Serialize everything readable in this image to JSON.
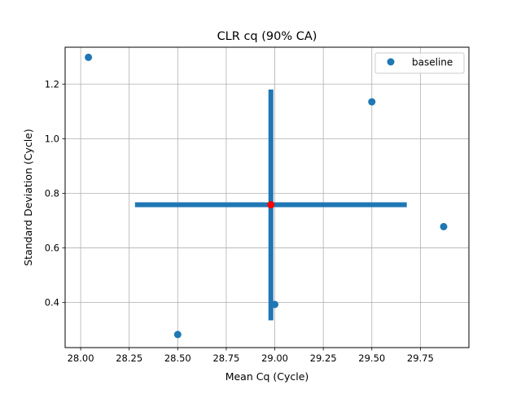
{
  "chart_data": {
    "type": "scatter",
    "title": "CLR cq (90% CA)",
    "xlabel": "Mean Cq (Cycle)",
    "ylabel": "Standard Deviation (Cycle)",
    "xlim": [
      27.92,
      30.0
    ],
    "ylim": [
      0.235,
      1.335
    ],
    "xticks": [
      28.0,
      28.25,
      28.5,
      28.75,
      29.0,
      29.25,
      29.5,
      29.75
    ],
    "xtick_labels": [
      "28.00",
      "28.25",
      "28.50",
      "28.75",
      "29.00",
      "29.25",
      "29.50",
      "29.75"
    ],
    "yticks": [
      0.4,
      0.6,
      0.8,
      1.0,
      1.2
    ],
    "ytick_labels": [
      "0.4",
      "0.6",
      "0.8",
      "1.0",
      "1.2"
    ],
    "grid": true,
    "legend": {
      "position": "top-right",
      "entries": [
        "baseline"
      ]
    },
    "series": [
      {
        "name": "baseline",
        "color": "#1f77b4",
        "points": [
          {
            "x": 28.04,
            "y": 1.298
          },
          {
            "x": 29.5,
            "y": 1.135
          },
          {
            "x": 29.87,
            "y": 0.678
          },
          {
            "x": 29.0,
            "y": 0.393
          },
          {
            "x": 28.5,
            "y": 0.283
          }
        ]
      }
    ],
    "center": {
      "x": 28.98,
      "y": 0.758,
      "color": "#ff0000"
    },
    "error_bars": {
      "color": "#1f77b4",
      "horizontal": {
        "x_min": 28.28,
        "x_max": 29.68,
        "y": 0.758
      },
      "vertical": {
        "x": 28.98,
        "y_min": 0.335,
        "y_max": 1.18
      }
    }
  }
}
